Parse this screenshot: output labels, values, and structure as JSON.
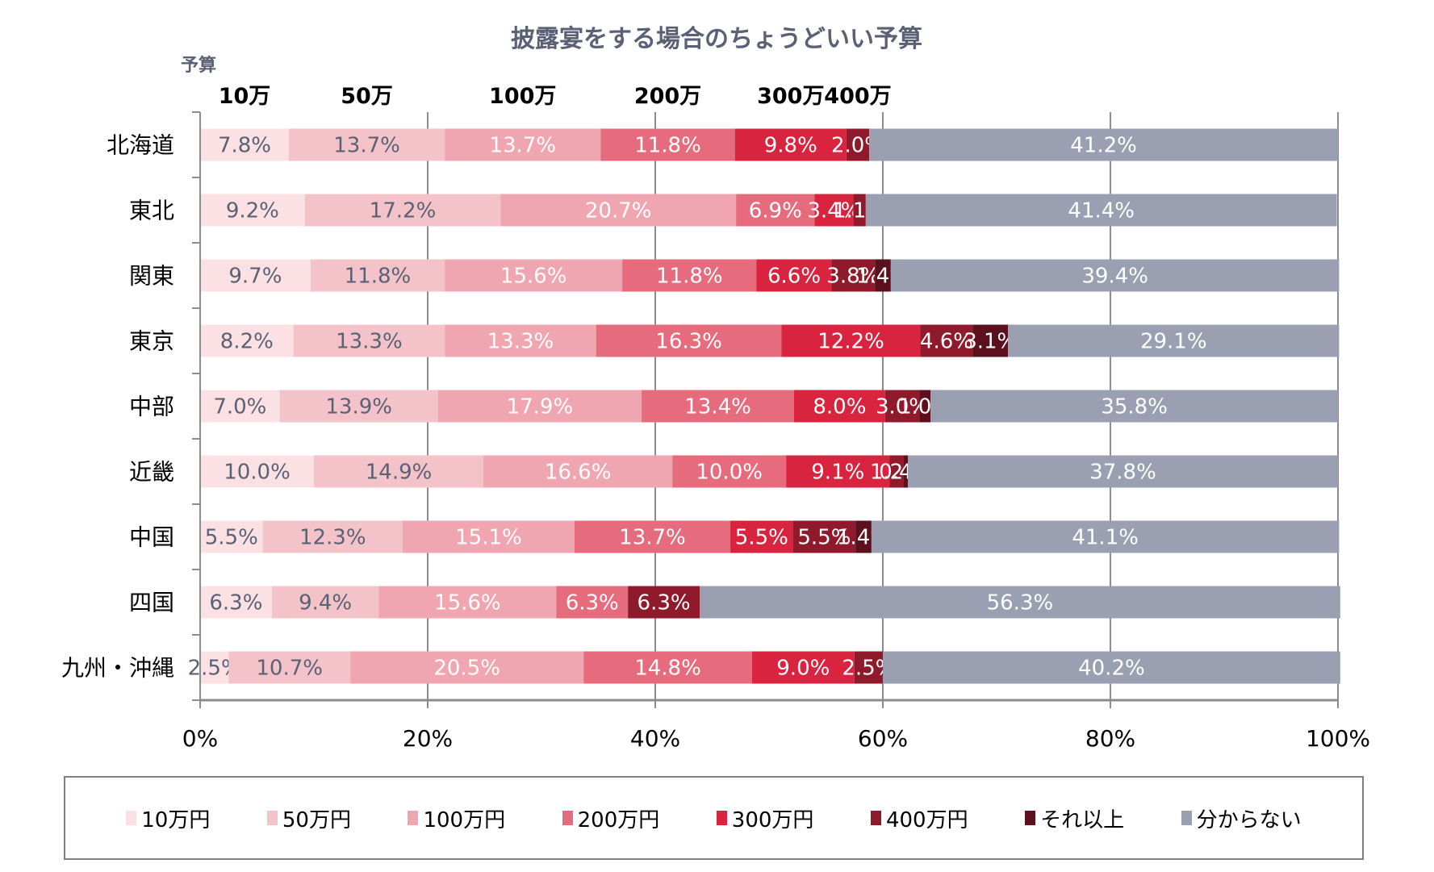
{
  "chart_data": {
    "type": "bar",
    "orientation": "horizontal",
    "stacked": "percent",
    "title": "披露宴をする場合のちょうどいい予算",
    "ylabel": "予算",
    "xlabel": "",
    "xlim": [
      0,
      100
    ],
    "x_ticks": [
      "0%",
      "20%",
      "40%",
      "60%",
      "80%",
      "100%"
    ],
    "grid": true,
    "legend_position": "bottom",
    "budget_annotations": [
      "10万",
      "50万",
      "100万",
      "200万",
      "300万",
      "400万"
    ],
    "categories": [
      "北海道",
      "東北",
      "関東",
      "東京",
      "中部",
      "近畿",
      "中国",
      "四国",
      "九州・沖縄"
    ],
    "series": [
      {
        "name": "10万円",
        "color": "#fbe1e4",
        "label_color": "#5b6175",
        "values": [
          7.8,
          9.2,
          9.7,
          8.2,
          7.0,
          10.0,
          5.5,
          6.3,
          2.5
        ]
      },
      {
        "name": "50万円",
        "color": "#f4c3c9",
        "label_color": "#5b6175",
        "values": [
          13.7,
          17.2,
          11.8,
          13.3,
          13.9,
          14.9,
          12.3,
          9.4,
          10.7
        ]
      },
      {
        "name": "100万円",
        "color": "#efa6b0",
        "label_color": "#ffffff",
        "values": [
          13.7,
          20.7,
          15.6,
          13.3,
          17.9,
          16.6,
          15.1,
          15.6,
          20.5
        ]
      },
      {
        "name": "200万円",
        "color": "#e56b7d",
        "label_color": "#ffffff",
        "values": [
          11.8,
          6.9,
          11.8,
          16.3,
          13.4,
          10.0,
          13.7,
          6.3,
          14.8
        ]
      },
      {
        "name": "300万円",
        "color": "#d9243f",
        "label_color": "#ffffff",
        "values": [
          9.8,
          3.4,
          6.6,
          12.2,
          8.0,
          9.1,
          5.5,
          0,
          9.0
        ]
      },
      {
        "name": "400万円",
        "color": "#8f1a2b",
        "label_color": "#ffffff",
        "values": [
          2.0,
          1.1,
          3.8,
          4.6,
          3.0,
          1.2,
          5.5,
          6.3,
          2.5
        ]
      },
      {
        "name": "それ以上",
        "color": "#5c101d",
        "label_color": "#ffffff",
        "values": [
          0,
          0,
          1.4,
          3.1,
          1.0,
          0.4,
          1.4,
          0,
          0
        ]
      },
      {
        "name": "分からない",
        "color": "#9aa0b1",
        "label_color": "#ffffff",
        "values": [
          41.2,
          41.4,
          39.4,
          29.1,
          35.8,
          37.8,
          41.1,
          56.3,
          40.2
        ]
      }
    ]
  }
}
